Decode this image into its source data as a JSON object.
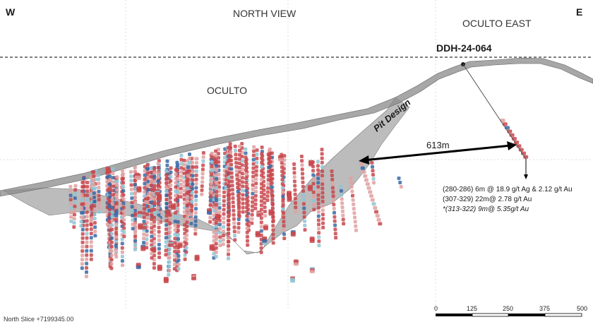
{
  "labels": {
    "west": "W",
    "east": "E",
    "north_view": "NORTH VIEW",
    "oculto_east": "OCULTO EAST",
    "oculto": "OCULTO",
    "drillhole": "DDH-24-064",
    "pit_design": "Pit Design",
    "distance": "613m",
    "north_slice": "North Slice +7199345.00"
  },
  "intervals": [
    {
      "text": "(280-286) 6m @ 18.9 g/t Ag & 2.12 g/t Au",
      "italic": false
    },
    {
      "text": "(307-329) 22m@ 2.78 g/t Au",
      "italic": false
    },
    {
      "text": "*(313-322) 9m@ 5.35g/t Au",
      "italic": true
    }
  ],
  "scale_bar": {
    "ticks": [
      "0",
      "125",
      "250",
      "375",
      "500"
    ]
  },
  "colors": {
    "terrain": "#6e6e6e",
    "pit_shell": "#9a9a9a",
    "drill_red": "#c8484e",
    "drill_pink": "#e0a0a0",
    "drill_blue": "#3a6aa6",
    "drill_cyan": "#8fc4d4",
    "arrow": "#000000"
  }
}
